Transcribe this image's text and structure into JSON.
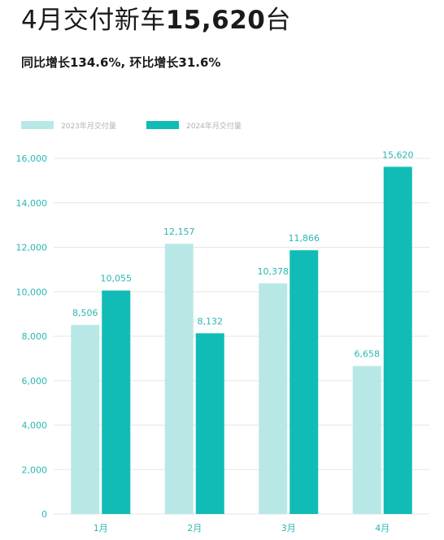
{
  "header": {
    "title_prefix": "4月交付新车",
    "title_number": "15,620",
    "title_suffix": "台",
    "subtitle": "同比增长134.6%, 环比增长31.6%"
  },
  "colors": {
    "series_2023": "#b8e8e6",
    "series_2024": "#12bcb6",
    "axis_text": "#2ab7b1",
    "grid": "#e6e6e6"
  },
  "chart_data": {
    "type": "bar",
    "categories": [
      "1月",
      "2月",
      "3月",
      "4月"
    ],
    "series": [
      {
        "name": "2023年月交付量",
        "values": [
          8506,
          12157,
          10378,
          6658
        ]
      },
      {
        "name": "2024年月交付量",
        "values": [
          10055,
          8132,
          11866,
          15620
        ]
      }
    ],
    "value_labels": [
      [
        "8,506",
        "12,157",
        "10,378",
        "6,658"
      ],
      [
        "10,055",
        "8,132",
        "11,866",
        "15,620"
      ]
    ],
    "y_ticks": [
      0,
      2000,
      4000,
      6000,
      8000,
      10000,
      12000,
      14000,
      16000
    ],
    "y_tick_labels": [
      "0",
      "2,000",
      "4,000",
      "6,000",
      "8,000",
      "10,000",
      "12,000",
      "14,000",
      "16,000"
    ],
    "ylim": [
      0,
      16000
    ],
    "grid": true,
    "legend_position": "top-left"
  }
}
